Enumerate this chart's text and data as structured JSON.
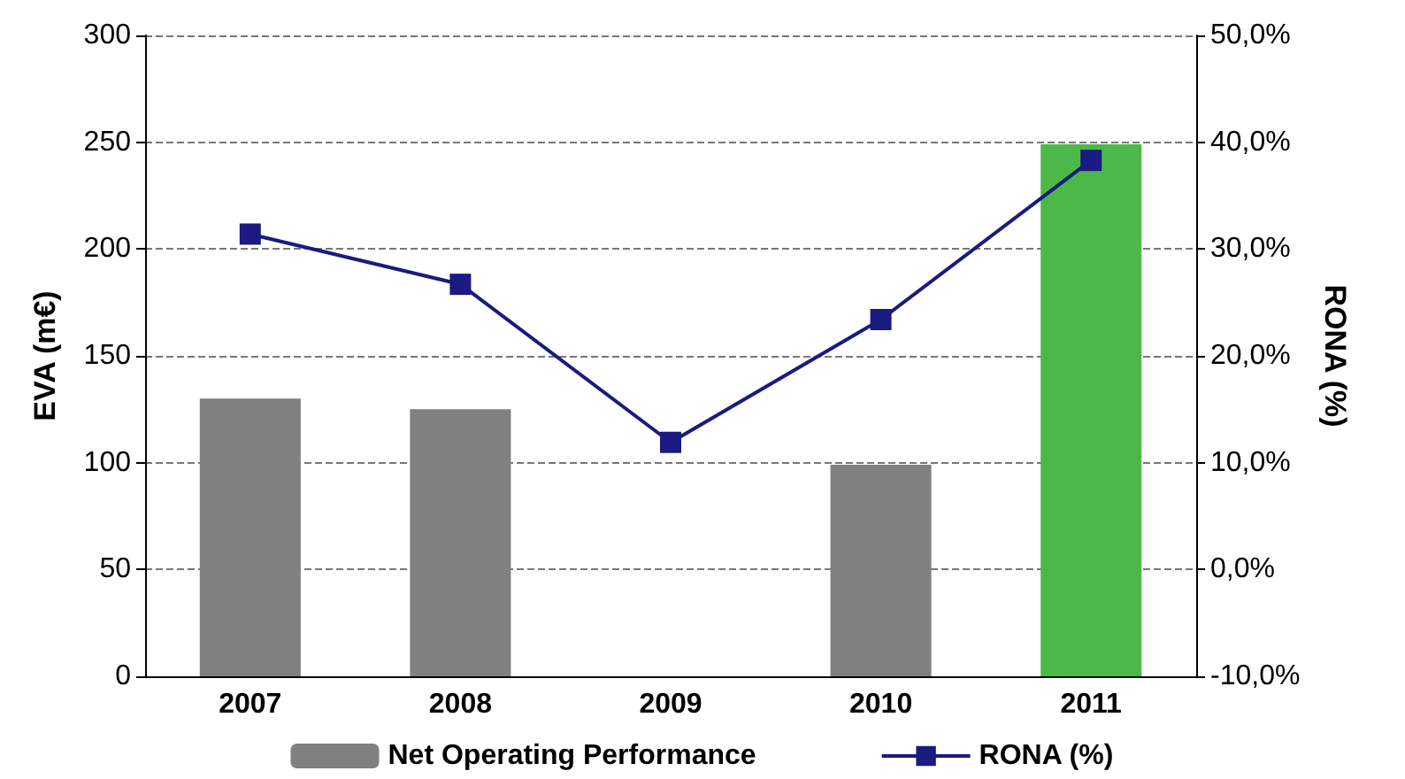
{
  "chart_data": {
    "type": "bar",
    "categories": [
      "2007",
      "2008",
      "2009",
      "2010",
      "2011"
    ],
    "ylabel": "EVA (m€)",
    "y2label": "RONA (%)",
    "series": [
      {
        "name": "Net Operating Performance",
        "color": "#808080",
        "colors": [
          "#808080",
          "#808080",
          "#808080",
          "#808080",
          "#4cb848"
        ],
        "values": [
          130,
          125,
          0,
          99,
          249
        ]
      },
      {
        "name": "RONA (%)",
        "type": "line",
        "axis": "y2",
        "color": "#1a1a80",
        "marker": "square",
        "values": [
          31.4,
          26.7,
          11.9,
          23.4,
          38.3
        ]
      }
    ],
    "ylim": [
      0,
      300
    ],
    "yticks": [
      0,
      50,
      100,
      150,
      200,
      250,
      300
    ],
    "y2lim": [
      -10,
      50
    ],
    "y2ticks": [
      {
        "value": -10,
        "label": "-10,0%"
      },
      {
        "value": 0,
        "label": "0,0%"
      },
      {
        "value": 10,
        "label": "10,0%"
      },
      {
        "value": 20,
        "label": "20,0%"
      },
      {
        "value": 30,
        "label": "30,0%"
      },
      {
        "value": 40,
        "label": "40,0%"
      },
      {
        "value": 50,
        "label": "50,0%"
      }
    ],
    "grid": "y",
    "legend": "bottom"
  }
}
